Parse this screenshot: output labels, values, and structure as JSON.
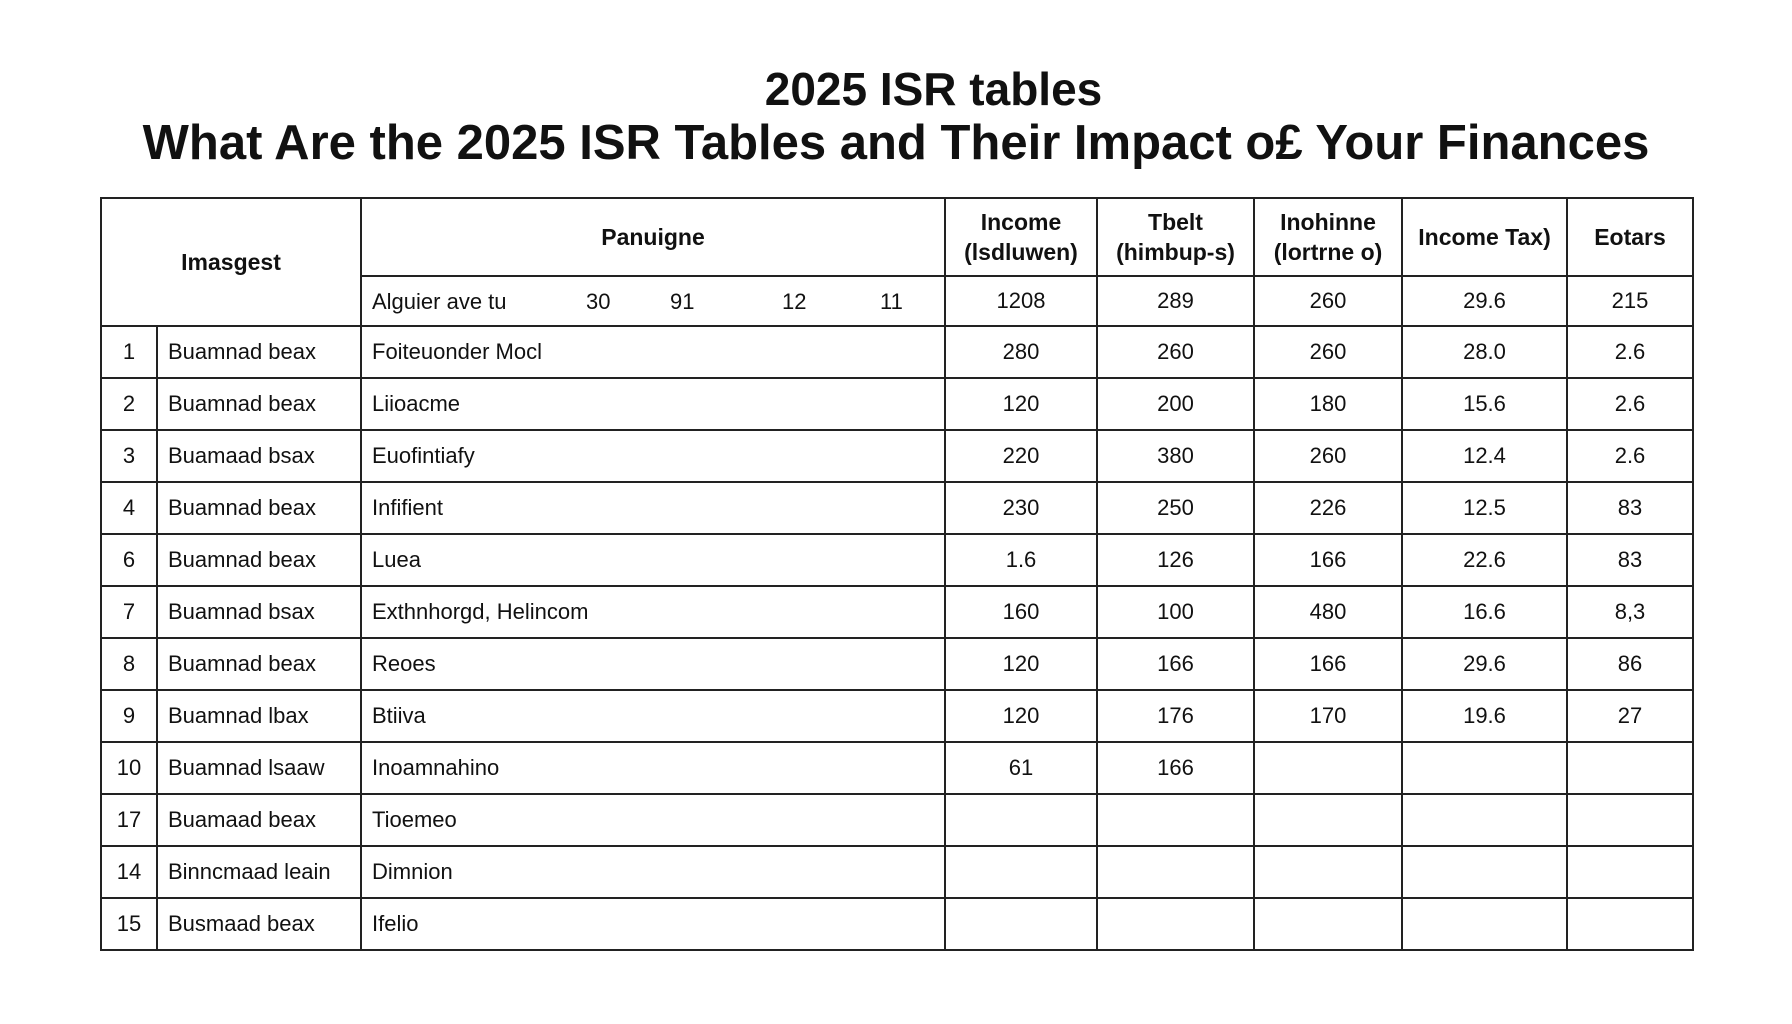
{
  "title": "2025 ISR tables",
  "subtitle": "What Are the 2025 ISR Tables and Their Impact o£ Your Finances",
  "table": {
    "headers": {
      "col1": "Imasgest",
      "col2": "Panuigne",
      "col3": "Income (lsdluwen)",
      "col4": "Tbelt (himbup-s)",
      "col5": "Inohinne (lortrne o)",
      "col6": "Income Tax)",
      "col7": "Eotars"
    },
    "subheader": {
      "label": "Alguier ave tu",
      "n1": "30",
      "n2": "91",
      "n3": "12",
      "n4": "11",
      "v1": "1208",
      "v2": "289",
      "v3": "260",
      "v4": "29.6",
      "v5": "215"
    },
    "rows": [
      {
        "no": "1",
        "name": "Buamnad beax",
        "desc": "Foiteuonder Mocl",
        "c1": "280",
        "c2": "260",
        "c3": "260",
        "c4": "28.0",
        "c5": "2.6"
      },
      {
        "no": "2",
        "name": "Buamnad beax",
        "desc": "Liioacme",
        "c1": "120",
        "c2": "200",
        "c3": "180",
        "c4": "15.6",
        "c5": "2.6"
      },
      {
        "no": "3",
        "name": "Buamaad bsax",
        "desc": "Euofintiafy",
        "c1": "220",
        "c2": "380",
        "c3": "260",
        "c4": "12.4",
        "c5": "2.6"
      },
      {
        "no": "4",
        "name": "Buamnad beax",
        "desc": "Infifient",
        "c1": "230",
        "c2": "250",
        "c3": "226",
        "c4": "12.5",
        "c5": "83"
      },
      {
        "no": "6",
        "name": "Buamnad beax",
        "desc": "Luea",
        "c1": "1.6",
        "c2": "126",
        "c3": "166",
        "c4": "22.6",
        "c5": "83"
      },
      {
        "no": "7",
        "name": "Buamnad bsax",
        "desc": "Exthnhorgd, Helincom",
        "c1": "160",
        "c2": "100",
        "c3": "480",
        "c4": "16.6",
        "c5": "8,3"
      },
      {
        "no": "8",
        "name": "Buamnad beax",
        "desc": "Reoes",
        "c1": "120",
        "c2": "166",
        "c3": "166",
        "c4": "29.6",
        "c5": "86"
      },
      {
        "no": "9",
        "name": "Buamnad lbax",
        "desc": "Btiiva",
        "c1": "120",
        "c2": "176",
        "c3": "170",
        "c4": "19.6",
        "c5": "27"
      },
      {
        "no": "10",
        "name": "Buamnad lsaaw",
        "desc": "Inoamnahino",
        "c1": "61",
        "c2": "166",
        "c3": "",
        "c4": "",
        "c5": ""
      },
      {
        "no": "17",
        "name": "Buamaad beax",
        "desc": "Tioemeo",
        "c1": "",
        "c2": "",
        "c3": "",
        "c4": "",
        "c5": ""
      },
      {
        "no": "14",
        "name": "Binncmaad leain",
        "desc": "Dimnion",
        "c1": "",
        "c2": "",
        "c3": "",
        "c4": "",
        "c5": ""
      },
      {
        "no": "15",
        "name": "Busmaad beax",
        "desc": "Ifelio",
        "c1": "",
        "c2": "",
        "c3": "",
        "c4": "",
        "c5": ""
      }
    ]
  }
}
